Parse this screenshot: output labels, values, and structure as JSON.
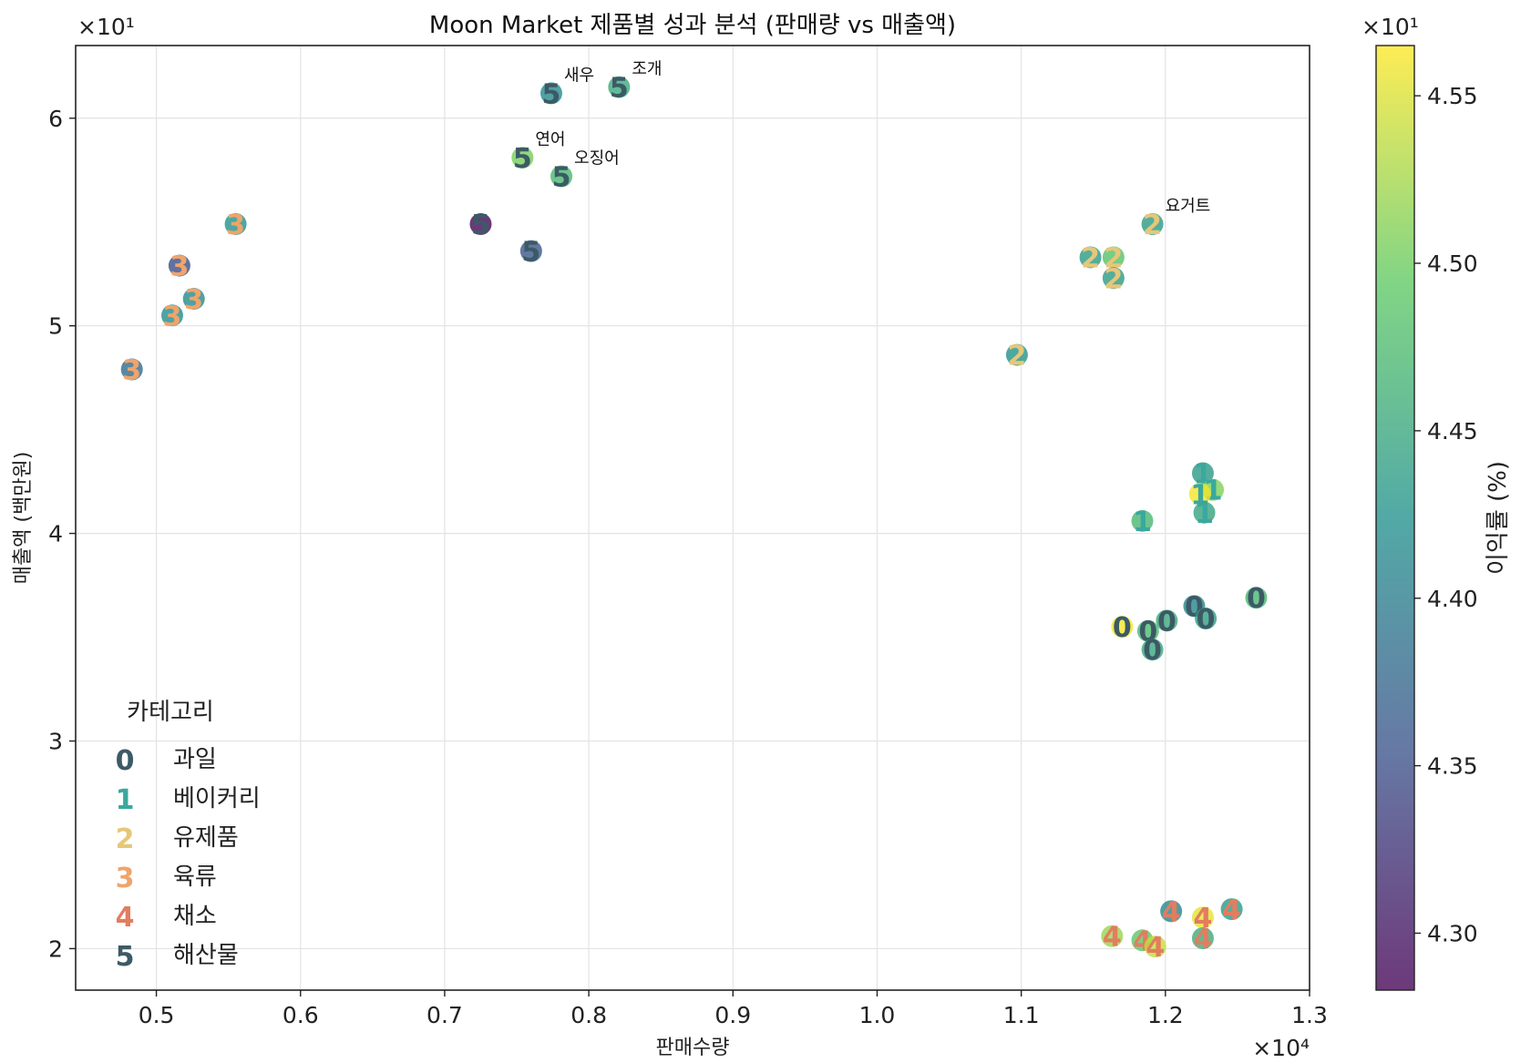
{
  "chart_data": {
    "type": "scatter",
    "title": "Moon Market 제품별 성과 분석 (판매량 vs 매출액)",
    "xlabel": "판매수량",
    "ylabel": "매출액 (백만원)",
    "x_offset_label": "×10⁴",
    "y_offset_label": "×10¹",
    "xlim": [
      4440,
      13000
    ],
    "ylim": [
      18.0,
      63.5
    ],
    "x_ticks": [
      5000,
      6000,
      7000,
      8000,
      9000,
      10000,
      11000,
      12000,
      13000
    ],
    "x_tick_labels": [
      "0.5",
      "0.6",
      "0.7",
      "0.8",
      "0.9",
      "1.0",
      "1.1",
      "1.2",
      "1.3"
    ],
    "y_ticks": [
      20,
      30,
      40,
      50,
      60
    ],
    "y_tick_labels": [
      "2",
      "3",
      "4",
      "5",
      "6"
    ],
    "grid": true,
    "legend": {
      "title": "카테고리",
      "placement": "lower-left",
      "entries": [
        {
          "marker": "0",
          "label": "과일",
          "color": "#3c5a66"
        },
        {
          "marker": "1",
          "label": "베이커리",
          "color": "#3aa89e"
        },
        {
          "marker": "2",
          "label": "유제품",
          "color": "#e6c779"
        },
        {
          "marker": "3",
          "label": "육류",
          "color": "#f0a46a"
        },
        {
          "marker": "4",
          "label": "채소",
          "color": "#e27d60"
        },
        {
          "marker": "5",
          "label": "해산물",
          "color": "#3c5a66"
        }
      ]
    },
    "colorbar": {
      "label": "이익률 (%)",
      "offset_label": "×10¹",
      "min": 42.83,
      "max": 45.65,
      "ticks": [
        43.0,
        43.5,
        44.0,
        44.5,
        45.0,
        45.5
      ],
      "tick_labels": [
        "4.30",
        "4.35",
        "4.40",
        "4.45",
        "4.50",
        "4.55"
      ],
      "colormap": [
        "#440154",
        "#3b528b",
        "#21918c",
        "#5ec962",
        "#fde725"
      ]
    },
    "points": [
      {
        "x": 12630,
        "y": 36.9,
        "category": 0,
        "margin": 44.7
      },
      {
        "x": 12200,
        "y": 36.5,
        "category": 0,
        "margin": 44.1
      },
      {
        "x": 12280,
        "y": 35.9,
        "category": 0,
        "margin": 44.4
      },
      {
        "x": 12010,
        "y": 35.8,
        "category": 0,
        "margin": 44.55
      },
      {
        "x": 11700,
        "y": 35.5,
        "category": 0,
        "margin": 45.6
      },
      {
        "x": 11880,
        "y": 35.3,
        "category": 0,
        "margin": 44.75
      },
      {
        "x": 11910,
        "y": 34.4,
        "category": 0,
        "margin": 44.5
      },
      {
        "x": 12260,
        "y": 42.9,
        "category": 1,
        "margin": 44.35
      },
      {
        "x": 12330,
        "y": 42.1,
        "category": 1,
        "margin": 45.1
      },
      {
        "x": 12240,
        "y": 41.9,
        "category": 1,
        "margin": 45.6
      },
      {
        "x": 12270,
        "y": 41.0,
        "category": 1,
        "margin": 44.45
      },
      {
        "x": 11840,
        "y": 40.6,
        "category": 1,
        "margin": 44.7
      },
      {
        "x": 11910,
        "y": 54.9,
        "category": 2,
        "margin": 44.35,
        "annotation": "요거트"
      },
      {
        "x": 11480,
        "y": 53.3,
        "category": 2,
        "margin": 44.35
      },
      {
        "x": 11640,
        "y": 53.3,
        "category": 2,
        "margin": 44.85
      },
      {
        "x": 11640,
        "y": 52.3,
        "category": 2,
        "margin": 44.35
      },
      {
        "x": 10970,
        "y": 48.6,
        "category": 2,
        "margin": 44.25
      },
      {
        "x": 5550,
        "y": 54.9,
        "category": 3,
        "margin": 44.25
      },
      {
        "x": 5160,
        "y": 52.9,
        "category": 3,
        "margin": 43.5
      },
      {
        "x": 5260,
        "y": 51.3,
        "category": 3,
        "margin": 44.15
      },
      {
        "x": 5110,
        "y": 50.5,
        "category": 3,
        "margin": 44.2
      },
      {
        "x": 4830,
        "y": 47.9,
        "category": 3,
        "margin": 43.8
      },
      {
        "x": 12040,
        "y": 21.8,
        "category": 4,
        "margin": 44.1
      },
      {
        "x": 12460,
        "y": 21.9,
        "category": 4,
        "margin": 44.35
      },
      {
        "x": 12260,
        "y": 21.5,
        "category": 4,
        "margin": 45.55
      },
      {
        "x": 11630,
        "y": 20.6,
        "category": 4,
        "margin": 45.2
      },
      {
        "x": 11840,
        "y": 20.4,
        "category": 4,
        "margin": 44.9
      },
      {
        "x": 11930,
        "y": 20.1,
        "category": 4,
        "margin": 45.4
      },
      {
        "x": 12260,
        "y": 20.5,
        "category": 4,
        "margin": 44.55
      },
      {
        "x": 7740,
        "y": 61.2,
        "category": 5,
        "margin": 44.15,
        "annotation": "새우"
      },
      {
        "x": 8210,
        "y": 61.5,
        "category": 5,
        "margin": 44.55,
        "annotation": "조개"
      },
      {
        "x": 7540,
        "y": 58.1,
        "category": 5,
        "margin": 45.05,
        "annotation": "연어"
      },
      {
        "x": 7810,
        "y": 57.2,
        "category": 5,
        "margin": 44.7,
        "annotation": "오징어"
      },
      {
        "x": 7250,
        "y": 54.9,
        "category": 5,
        "margin": 42.9
      },
      {
        "x": 7600,
        "y": 53.6,
        "category": 5,
        "margin": 43.6
      }
    ]
  }
}
